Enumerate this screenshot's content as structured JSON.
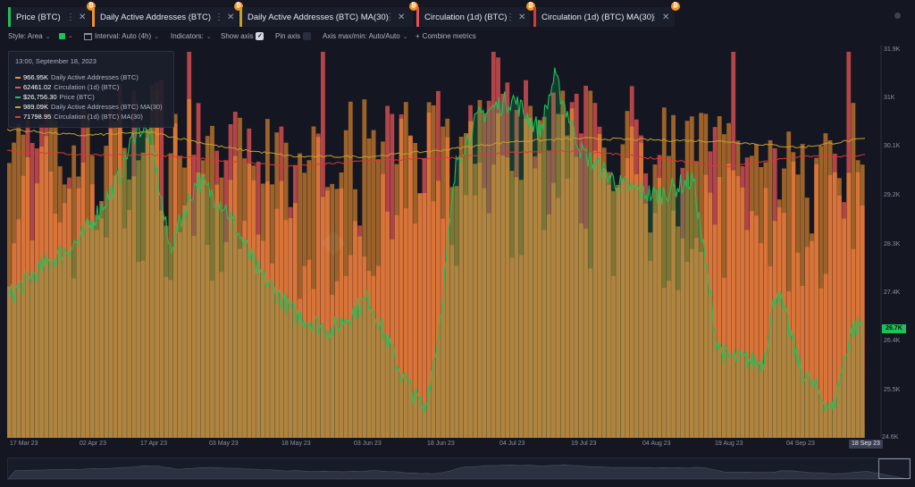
{
  "tabs": [
    {
      "label": "Price (BTC)",
      "color": "#1ec05a"
    },
    {
      "label": "Daily Active Addresses (BTC)",
      "color": "#f0922e"
    },
    {
      "label": "Daily Active Addresses (BTC) MA(30)",
      "color": "#c4a030"
    },
    {
      "label": "Circulation (1d) (BTC)",
      "color": "#e85454"
    },
    {
      "label": "Circulation (1d) (BTC) MA(30)",
      "color": "#d83838"
    }
  ],
  "toolbar": {
    "style_label": "Style: Area",
    "interval_label": "Interval: Auto (4h)",
    "indicators_label": "Indicators:",
    "show_axis_label": "Show axis",
    "pin_axis_label": "Pin axis",
    "axis_minmax_label": "Axis max/min: Auto/Auto",
    "combine_label": "Combine metrics"
  },
  "tooltip": {
    "time": "13:00, September 18, 2023",
    "rows": [
      {
        "value": "966.95K",
        "name": "Daily Active Addresses (BTC)",
        "color": "#f0922e"
      },
      {
        "value": "62461.02",
        "name": "Circulation (1d) (BTC)",
        "color": "#e85454"
      },
      {
        "value": "$26,756.30",
        "name": "Price (BTC)",
        "color": "#1ec05a"
      },
      {
        "value": "989.09K",
        "name": "Daily Active Addresses (BTC) MA(30)",
        "color": "#c4a030"
      },
      {
        "value": "71798.95",
        "name": "Circulation (1d) (BTC) MA(30)",
        "color": "#d83838"
      }
    ]
  },
  "axes": {
    "y_price_ticks": [
      "31.9K",
      "31K",
      "30.1K",
      "29.2K",
      "28.3K",
      "27.4K",
      "26.4K",
      "25.5K",
      "24.6K"
    ],
    "y_current": "26.7K",
    "x_ticks": [
      "17 Mar 23",
      "02 Apr 23",
      "17 Apr 23",
      "03 May 23",
      "18 May 23",
      "03 Jun 23",
      "18 Jun 23",
      "04 Jul 23",
      "19 Jul 23",
      "04 Aug 23",
      "19 Aug 23",
      "04 Sep 23"
    ],
    "x_current": "18 Sep 23"
  },
  "chart_data": {
    "type": "bar",
    "x_range": [
      "17 Mar 23",
      "18 Sep 23"
    ],
    "series": [
      {
        "name": "Price (BTC)",
        "type": "area",
        "color": "#1ec05a",
        "points": [
          [
            "17 Mar 23",
            27200
          ],
          [
            "25 Mar 23",
            27800
          ],
          [
            "02 Apr 23",
            28300
          ],
          [
            "10 Apr 23",
            29400
          ],
          [
            "14 Apr 23",
            30400
          ],
          [
            "17 Apr 23",
            30200
          ],
          [
            "21 Apr 23",
            28100
          ],
          [
            "27 Apr 23",
            29400
          ],
          [
            "03 May 23",
            28900
          ],
          [
            "10 May 23",
            27700
          ],
          [
            "18 May 23",
            26900
          ],
          [
            "26 May 23",
            26600
          ],
          [
            "03 Jun 23",
            27200
          ],
          [
            "10 Jun 23",
            25800
          ],
          [
            "15 Jun 23",
            25100
          ],
          [
            "18 Jun 23",
            26500
          ],
          [
            "22 Jun 23",
            29800
          ],
          [
            "27 Jun 23",
            30600
          ],
          [
            "04 Jul 23",
            30900
          ],
          [
            "10 Jul 23",
            30300
          ],
          [
            "13 Jul 23",
            31300
          ],
          [
            "19 Jul 23",
            29900
          ],
          [
            "27 Jul 23",
            29300
          ],
          [
            "04 Aug 23",
            29100
          ],
          [
            "12 Aug 23",
            29400
          ],
          [
            "17 Aug 23",
            26400
          ],
          [
            "19 Aug 23",
            26100
          ],
          [
            "27 Aug 23",
            26000
          ],
          [
            "30 Aug 23",
            27400
          ],
          [
            "04 Sep 23",
            25900
          ],
          [
            "11 Sep 23",
            25100
          ],
          [
            "15 Sep 23",
            26600
          ],
          [
            "18 Sep 23",
            26756.3
          ]
        ]
      },
      {
        "name": "Daily Active Addresses (BTC)",
        "type": "bar",
        "color": "#f0922e",
        "points": [
          [
            "17 Mar 23",
            940000
          ],
          [
            "02 Apr 23",
            920000
          ],
          [
            "17 Apr 23",
            1010000
          ],
          [
            "03 May 23",
            930000
          ],
          [
            "18 May 23",
            900000
          ],
          [
            "03 Jun 23",
            960000
          ],
          [
            "18 Jun 23",
            940000
          ],
          [
            "04 Jul 23",
            1000000
          ],
          [
            "19 Jul 23",
            990000
          ],
          [
            "04 Aug 23",
            960000
          ],
          [
            "19 Aug 23",
            930000
          ],
          [
            "04 Sep 23",
            950000
          ],
          [
            "18 Sep 23",
            966950
          ]
        ]
      },
      {
        "name": "Daily Active Addresses (BTC) MA(30)",
        "type": "line",
        "color": "#c4a030",
        "points": [
          [
            "17 Mar 23",
            1020000
          ],
          [
            "02 Apr 23",
            1000000
          ],
          [
            "17 Apr 23",
            1010000
          ],
          [
            "03 May 23",
            960000
          ],
          [
            "18 May 23",
            930000
          ],
          [
            "03 Jun 23",
            930000
          ],
          [
            "18 Jun 23",
            950000
          ],
          [
            "04 Jul 23",
            980000
          ],
          [
            "19 Jul 23",
            990000
          ],
          [
            "04 Aug 23",
            985000
          ],
          [
            "19 Aug 23",
            980000
          ],
          [
            "04 Sep 23",
            960000
          ],
          [
            "18 Sep 23",
            989090
          ]
        ]
      },
      {
        "name": "Circulation (1d) (BTC)",
        "type": "bar",
        "color": "#e85454",
        "points": [
          [
            "17 Mar 23",
            70000
          ],
          [
            "02 Apr 23",
            68000
          ],
          [
            "17 Apr 23",
            75000
          ],
          [
            "03 May 23",
            66000
          ],
          [
            "18 May 23",
            62000
          ],
          [
            "03 Jun 23",
            64000
          ],
          [
            "18 Jun 23",
            69000
          ],
          [
            "04 Jul 23",
            72000
          ],
          [
            "19 Jul 23",
            71000
          ],
          [
            "04 Aug 23",
            70000
          ],
          [
            "19 Aug 23",
            60000
          ],
          [
            "04 Sep 23",
            58000
          ],
          [
            "18 Sep 23",
            62461.02
          ]
        ]
      },
      {
        "name": "Circulation (1d) (BTC) MA(30)",
        "type": "line",
        "color": "#d83838",
        "points": [
          [
            "17 Mar 23",
            73000
          ],
          [
            "02 Apr 23",
            72000
          ],
          [
            "17 Apr 23",
            72000
          ],
          [
            "03 May 23",
            70500
          ],
          [
            "18 May 23",
            69000
          ],
          [
            "03 Jun 23",
            70500
          ],
          [
            "18 Jun 23",
            71000
          ],
          [
            "04 Jul 23",
            72500
          ],
          [
            "19 Jul 23",
            73000
          ],
          [
            "04 Aug 23",
            71000
          ],
          [
            "19 Aug 23",
            69000
          ],
          [
            "04 Sep 23",
            71500
          ],
          [
            "18 Sep 23",
            71798.95
          ]
        ]
      }
    ],
    "ylim_price": [
      24600,
      31900
    ],
    "grid": false,
    "legend": "tabs-top"
  }
}
